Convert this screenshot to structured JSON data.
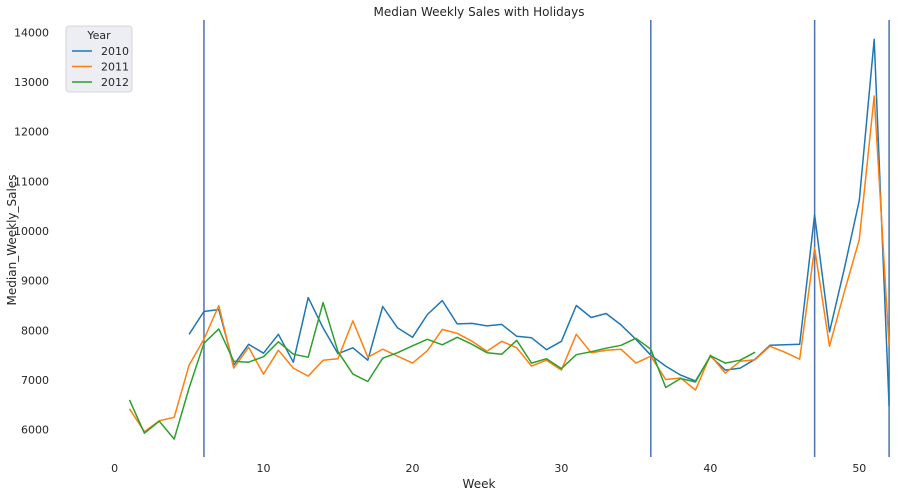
{
  "chart_data": {
    "type": "line",
    "title": "Median Weekly Sales with Holidays",
    "xlabel": "Week",
    "ylabel": "Median_Weekly_Sales",
    "xlim": [
      -4,
      53
    ],
    "ylim": [
      5450,
      14250
    ],
    "x_ticks": [
      0,
      10,
      20,
      30,
      40,
      50
    ],
    "y_ticks": [
      6000,
      7000,
      8000,
      9000,
      10000,
      11000,
      12000,
      13000,
      14000
    ],
    "grid": false,
    "legend": {
      "title": "Year",
      "placement": "top-left"
    },
    "holiday_weeks": [
      6,
      36,
      47,
      52
    ],
    "holiday_line_color": "#4c72b0",
    "series": [
      {
        "name": "2010",
        "color": "#1f77b4",
        "points": [
          [
            5,
            7920
          ],
          [
            6,
            8380
          ],
          [
            7,
            8420
          ],
          [
            8,
            7300
          ],
          [
            9,
            7720
          ],
          [
            10,
            7540
          ],
          [
            11,
            7920
          ],
          [
            12,
            7360
          ],
          [
            13,
            8660
          ],
          [
            14,
            8050
          ],
          [
            15,
            7530
          ],
          [
            16,
            7650
          ],
          [
            17,
            7400
          ],
          [
            18,
            8480
          ],
          [
            19,
            8050
          ],
          [
            20,
            7860
          ],
          [
            21,
            8320
          ],
          [
            22,
            8600
          ],
          [
            23,
            8130
          ],
          [
            24,
            8140
          ],
          [
            25,
            8090
          ],
          [
            26,
            8120
          ],
          [
            27,
            7880
          ],
          [
            28,
            7850
          ],
          [
            29,
            7610
          ],
          [
            30,
            7780
          ],
          [
            31,
            8500
          ],
          [
            32,
            8260
          ],
          [
            33,
            8340
          ],
          [
            34,
            8110
          ],
          [
            35,
            7820
          ],
          [
            36,
            7500
          ],
          [
            37,
            7280
          ],
          [
            38,
            7100
          ],
          [
            39,
            6980
          ],
          [
            40,
            7480
          ],
          [
            41,
            7200
          ],
          [
            42,
            7240
          ],
          [
            43,
            7420
          ],
          [
            44,
            7700
          ],
          [
            45,
            7710
          ],
          [
            46,
            7720
          ],
          [
            47,
            10330
          ],
          [
            48,
            7970
          ],
          [
            49,
            9250
          ],
          [
            50,
            10620
          ],
          [
            51,
            13860
          ],
          [
            52,
            6470
          ]
        ]
      },
      {
        "name": "2011",
        "color": "#ff7f0e",
        "points": [
          [
            1,
            6420
          ],
          [
            2,
            5960
          ],
          [
            3,
            6180
          ],
          [
            4,
            6250
          ],
          [
            5,
            7300
          ],
          [
            6,
            7820
          ],
          [
            7,
            8500
          ],
          [
            8,
            7240
          ],
          [
            9,
            7660
          ],
          [
            10,
            7120
          ],
          [
            11,
            7600
          ],
          [
            12,
            7240
          ],
          [
            13,
            7080
          ],
          [
            14,
            7400
          ],
          [
            15,
            7430
          ],
          [
            16,
            8190
          ],
          [
            17,
            7460
          ],
          [
            18,
            7620
          ],
          [
            19,
            7480
          ],
          [
            20,
            7340
          ],
          [
            21,
            7590
          ],
          [
            22,
            8020
          ],
          [
            23,
            7940
          ],
          [
            24,
            7780
          ],
          [
            25,
            7580
          ],
          [
            26,
            7780
          ],
          [
            27,
            7650
          ],
          [
            28,
            7280
          ],
          [
            29,
            7400
          ],
          [
            30,
            7200
          ],
          [
            31,
            7920
          ],
          [
            32,
            7550
          ],
          [
            33,
            7600
          ],
          [
            34,
            7620
          ],
          [
            35,
            7340
          ],
          [
            36,
            7480
          ],
          [
            37,
            7010
          ],
          [
            38,
            7040
          ],
          [
            39,
            6800
          ],
          [
            40,
            7500
          ],
          [
            41,
            7140
          ],
          [
            42,
            7380
          ],
          [
            43,
            7410
          ],
          [
            44,
            7680
          ],
          [
            45,
            7560
          ],
          [
            46,
            7420
          ],
          [
            47,
            9660
          ],
          [
            48,
            7680
          ],
          [
            49,
            8780
          ],
          [
            50,
            9830
          ],
          [
            51,
            12720
          ],
          [
            52,
            7680
          ]
        ]
      },
      {
        "name": "2012",
        "color": "#2ca02c",
        "points": [
          [
            1,
            6600
          ],
          [
            2,
            5930
          ],
          [
            3,
            6170
          ],
          [
            4,
            5810
          ],
          [
            5,
            6840
          ],
          [
            6,
            7740
          ],
          [
            7,
            8030
          ],
          [
            8,
            7380
          ],
          [
            9,
            7360
          ],
          [
            10,
            7470
          ],
          [
            11,
            7770
          ],
          [
            12,
            7520
          ],
          [
            13,
            7460
          ],
          [
            14,
            8560
          ],
          [
            15,
            7570
          ],
          [
            16,
            7120
          ],
          [
            17,
            6970
          ],
          [
            18,
            7440
          ],
          [
            19,
            7550
          ],
          [
            20,
            7690
          ],
          [
            21,
            7820
          ],
          [
            22,
            7710
          ],
          [
            23,
            7860
          ],
          [
            24,
            7720
          ],
          [
            25,
            7550
          ],
          [
            26,
            7520
          ],
          [
            27,
            7800
          ],
          [
            28,
            7340
          ],
          [
            29,
            7430
          ],
          [
            30,
            7230
          ],
          [
            31,
            7510
          ],
          [
            32,
            7570
          ],
          [
            33,
            7640
          ],
          [
            34,
            7700
          ],
          [
            35,
            7840
          ],
          [
            36,
            7620
          ],
          [
            37,
            6850
          ],
          [
            38,
            7030
          ],
          [
            39,
            6960
          ],
          [
            40,
            7490
          ],
          [
            41,
            7340
          ],
          [
            42,
            7400
          ],
          [
            43,
            7560
          ]
        ]
      }
    ]
  }
}
